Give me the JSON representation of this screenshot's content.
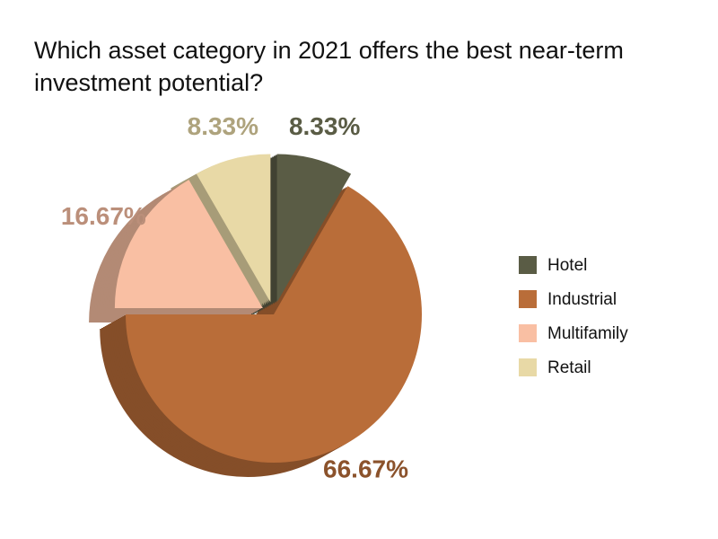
{
  "chart_data": {
    "type": "pie",
    "title": "Which asset category in 2021 offers the best near-term investment potential?",
    "categories": [
      "Hotel",
      "Industrial",
      "Multifamily",
      "Retail"
    ],
    "values": [
      8.33,
      66.67,
      16.67,
      8.33
    ],
    "value_labels": [
      "8.33%",
      "66.67%",
      "16.67%",
      "8.33%"
    ],
    "colors": [
      "#5a5c45",
      "#b96d39",
      "#f9bfa3",
      "#e8d9a6"
    ],
    "legend": "right"
  }
}
